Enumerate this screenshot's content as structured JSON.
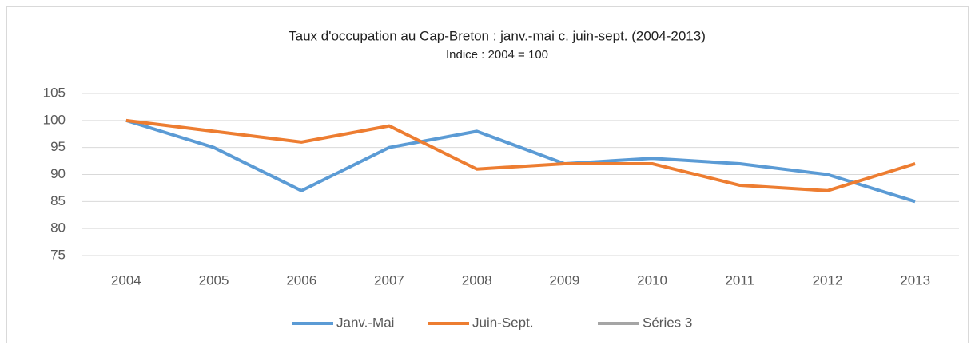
{
  "chart_data": {
    "type": "line",
    "title": "Taux d'occupation au Cap-Breton : janv.-mai c. juin-sept. (2004-2013)",
    "subtitle": "Indice : 2004 = 100",
    "categories": [
      "2004",
      "2005",
      "2006",
      "2007",
      "2008",
      "2009",
      "2010",
      "2011",
      "2012",
      "2013"
    ],
    "series": [
      {
        "name": "Janv.-Mai",
        "color": "#5b9bd5",
        "values": [
          100,
          95,
          87,
          95,
          98,
          92,
          93,
          92,
          90,
          85
        ]
      },
      {
        "name": "Juin-Sept.",
        "color": "#ed7d31",
        "values": [
          100,
          98,
          96,
          99,
          91,
          92,
          92,
          88,
          87,
          92
        ]
      },
      {
        "name": "Séries 3",
        "color": "#a5a5a5",
        "values": [
          null,
          null,
          null,
          null,
          null,
          null,
          null,
          null,
          null,
          null
        ]
      }
    ],
    "ylim": [
      75,
      105
    ],
    "yticks": [
      75,
      80,
      85,
      90,
      95,
      100,
      105
    ],
    "grid": true,
    "legend": "bottom"
  }
}
